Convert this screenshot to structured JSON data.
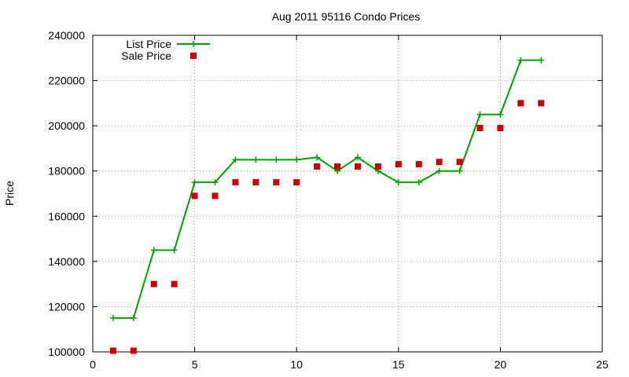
{
  "chart_data": {
    "type": "line",
    "title": "Aug 2011 95116 Condo Prices",
    "xlabel": "",
    "ylabel": "Price",
    "xlim": [
      0,
      25
    ],
    "ylim": [
      100000,
      240000
    ],
    "x_ticks": [
      0,
      5,
      10,
      15,
      20,
      25
    ],
    "y_ticks": [
      100000,
      120000,
      140000,
      160000,
      180000,
      200000,
      220000,
      240000
    ],
    "grid": true,
    "legend_position": "top-left",
    "series": [
      {
        "name": "List Price",
        "style": "line-with-plus-markers",
        "color": "#00a000",
        "x": [
          1,
          2,
          3,
          4,
          5,
          6,
          7,
          8,
          9,
          10,
          11,
          12,
          13,
          14,
          15,
          16,
          17,
          18,
          19,
          20,
          21,
          22
        ],
        "y": [
          115000,
          115000,
          145000,
          145000,
          175000,
          175000,
          185000,
          185000,
          185000,
          185000,
          186000,
          180000,
          186000,
          180000,
          175000,
          175000,
          180000,
          180000,
          205000,
          205000,
          229000,
          229000
        ]
      },
      {
        "name": "Sale Price",
        "style": "square-markers",
        "color": "#cc0000",
        "x": [
          1,
          2,
          3,
          4,
          5,
          6,
          7,
          8,
          9,
          10,
          11,
          12,
          13,
          14,
          15,
          16,
          17,
          18,
          19,
          20,
          21,
          22
        ],
        "y": [
          100500,
          100500,
          130000,
          130000,
          169000,
          169000,
          175000,
          175000,
          175000,
          175000,
          182000,
          182000,
          182000,
          182000,
          183000,
          183000,
          184000,
          184000,
          199000,
          199000,
          210000,
          210000
        ]
      }
    ]
  }
}
